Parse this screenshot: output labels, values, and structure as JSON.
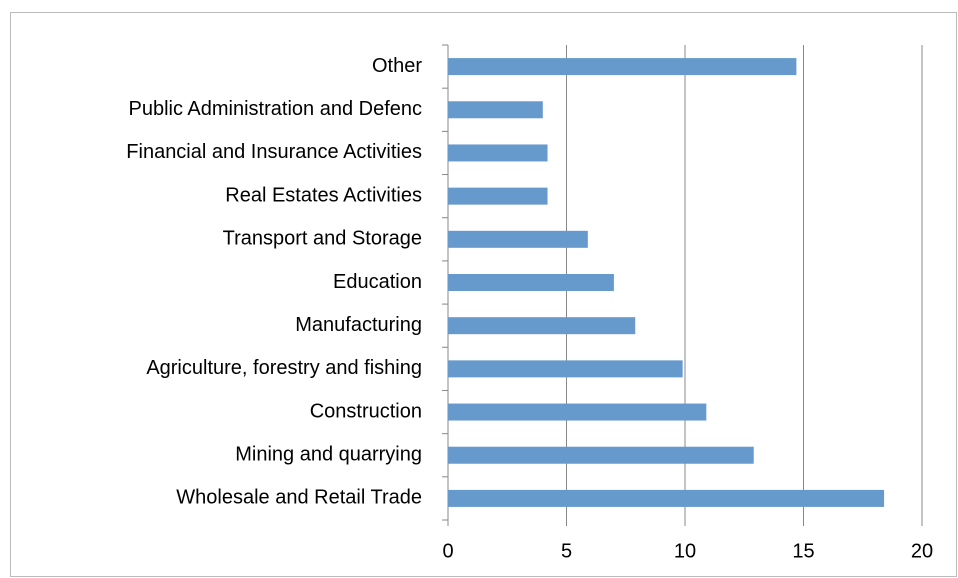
{
  "chart_data": {
    "type": "barh",
    "categories": [
      "Wholesale and Retail Trade",
      "Mining and quarrying",
      "Construction",
      "Agriculture, forestry and fishing",
      "Manufacturing",
      "Education",
      "Transport and Storage",
      "Real Estates Activities",
      "Financial and Insurance Activities",
      "Public Administration and Defenc",
      "Other"
    ],
    "values": [
      18.4,
      12.9,
      10.9,
      9.9,
      7.9,
      7.0,
      5.9,
      4.2,
      4.2,
      4.0,
      14.7
    ],
    "color": "#6699cc",
    "xlim": [
      0,
      20
    ],
    "xticks": [
      0,
      5,
      10,
      15,
      20
    ],
    "grid": true
  }
}
